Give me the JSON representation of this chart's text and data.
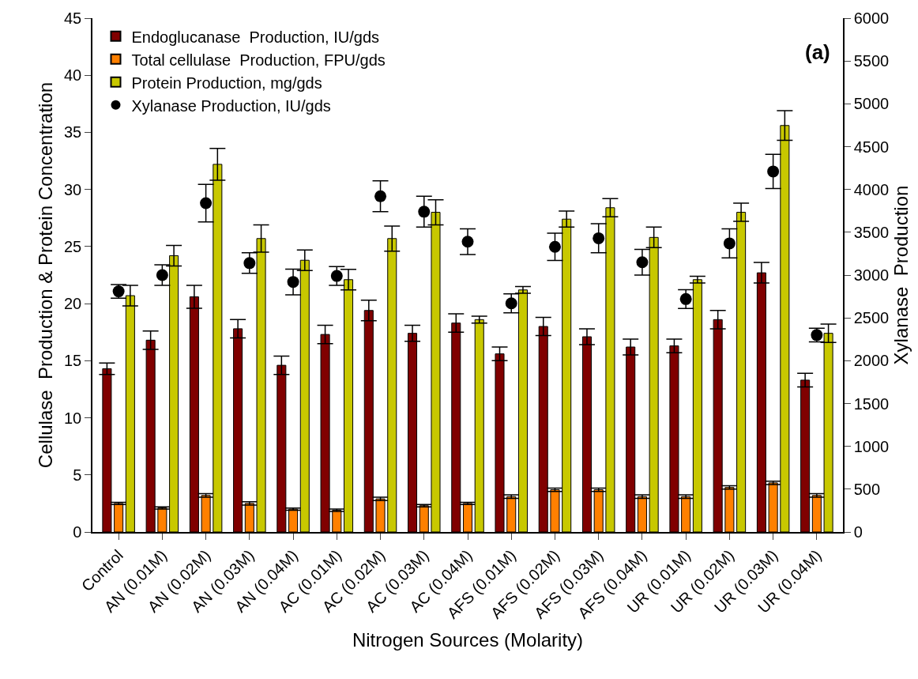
{
  "chart_data": {
    "type": "bar",
    "categories": [
      "Control",
      "AN (0.01M)",
      "AN (0.02M)",
      "AN (0.03M)",
      "AN (0.04M)",
      "AC (0.01M)",
      "AC (0.02M)",
      "AC (0.03M)",
      "AC (0.04M)",
      "AFS (0.01M)",
      "AFS (0.02M)",
      "AFS (0.03M)",
      "AFS (0.04M)",
      "UR (0.01M)",
      "UR (0.02M)",
      "UR (0.03M)",
      "UR (0.04M)"
    ],
    "xlabel": "Nitrogen Sources (Molarity)",
    "ylabel": "Cellulase  Production & Protein Concentration",
    "y2label": "Xylanase  Production",
    "annotations": [
      "(a)"
    ],
    "ylim": [
      0,
      45
    ],
    "yticks": [
      0,
      5,
      10,
      15,
      20,
      25,
      30,
      35,
      40,
      45
    ],
    "y2lim": [
      0,
      6000
    ],
    "y2ticks": [
      0,
      500,
      1000,
      1500,
      2000,
      2500,
      3000,
      3500,
      4000,
      4500,
      5000,
      5500,
      6000
    ],
    "legend": "top left",
    "series": [
      {
        "name": "Endoglucanase  Production, IU/gds",
        "color": "#800000",
        "values": [
          14.3,
          16.8,
          20.6,
          17.8,
          14.6,
          17.3,
          19.4,
          17.4,
          18.3,
          15.6,
          18.0,
          17.1,
          16.2,
          16.3,
          18.6,
          22.7,
          13.3
        ],
        "errors": [
          0.5,
          0.8,
          1.0,
          0.8,
          0.8,
          0.8,
          0.9,
          0.7,
          0.8,
          0.6,
          0.8,
          0.7,
          0.7,
          0.6,
          0.8,
          0.9,
          0.6
        ]
      },
      {
        "name": "Total cellulase  Production, FPU/gds",
        "color": "#ff8000",
        "values": [
          2.5,
          2.1,
          3.2,
          2.5,
          2.0,
          1.9,
          2.9,
          2.3,
          2.5,
          3.1,
          3.7,
          3.7,
          3.1,
          3.1,
          3.9,
          4.3,
          3.2
        ],
        "errors": [
          0.1,
          0.1,
          0.15,
          0.15,
          0.1,
          0.1,
          0.15,
          0.1,
          0.1,
          0.15,
          0.15,
          0.15,
          0.15,
          0.15,
          0.15,
          0.15,
          0.15
        ]
      },
      {
        "name": "Protein Production, mg/gds",
        "color": "#c8c800",
        "values": [
          20.7,
          24.2,
          32.2,
          25.7,
          23.8,
          22.1,
          25.7,
          28.0,
          18.6,
          21.2,
          27.4,
          28.4,
          25.8,
          22.1,
          28.0,
          35.6,
          17.4
        ],
        "errors": [
          0.9,
          0.9,
          1.4,
          1.2,
          0.9,
          0.9,
          1.1,
          1.1,
          0.3,
          0.3,
          0.7,
          0.8,
          0.9,
          0.3,
          0.8,
          1.3,
          0.8
        ]
      },
      {
        "name": "Xylanase Production, IU/gds",
        "type": "scatter",
        "axis": "y2",
        "color": "#000000",
        "values": [
          2810,
          3000,
          3840,
          3140,
          2920,
          2990,
          3920,
          3740,
          3390,
          2670,
          3330,
          3430,
          3150,
          2720,
          3370,
          4210,
          2300
        ],
        "errors": [
          80,
          120,
          220,
          120,
          150,
          110,
          180,
          180,
          150,
          110,
          160,
          170,
          150,
          110,
          170,
          200,
          80
        ]
      }
    ]
  }
}
